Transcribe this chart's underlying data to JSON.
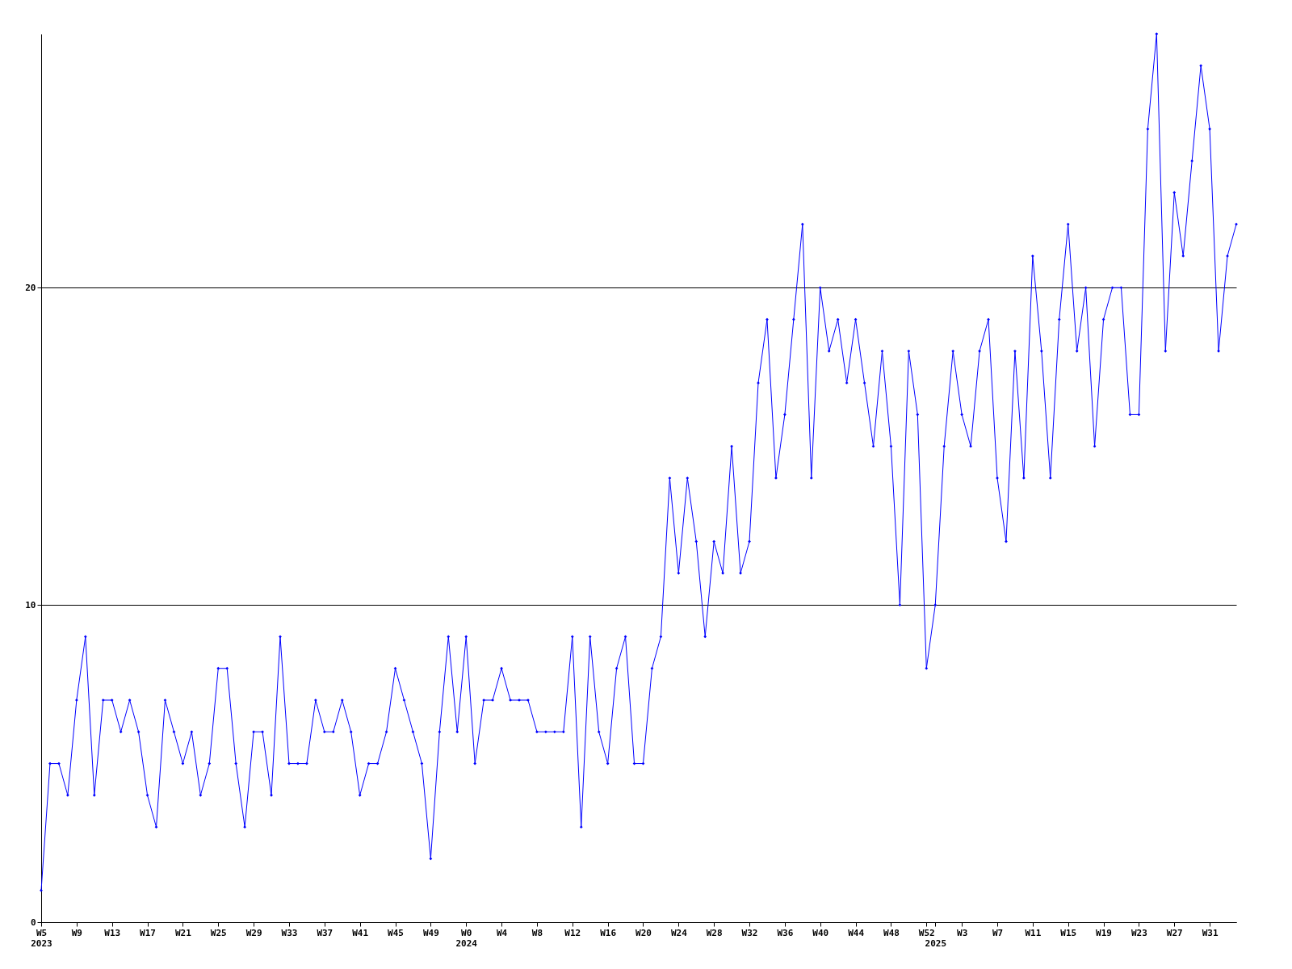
{
  "chart_data": {
    "type": "line",
    "categories": [
      "W5\n2023",
      null,
      null,
      null,
      "W9",
      null,
      null,
      null,
      "W13",
      null,
      null,
      null,
      "W17",
      null,
      null,
      null,
      "W21",
      null,
      null,
      null,
      "W25",
      null,
      null,
      null,
      "W29",
      null,
      null,
      null,
      "W33",
      null,
      null,
      null,
      "W37",
      null,
      null,
      null,
      "W41",
      null,
      null,
      null,
      "W45",
      null,
      null,
      null,
      "W49",
      null,
      null,
      null,
      "W0\n2024",
      null,
      null,
      null,
      "W4",
      null,
      null,
      null,
      "W8",
      null,
      null,
      null,
      "W12",
      null,
      null,
      null,
      "W16",
      null,
      null,
      null,
      "W20",
      null,
      null,
      null,
      "W24",
      null,
      null,
      null,
      "W28",
      null,
      null,
      null,
      "W32",
      null,
      null,
      null,
      "W36",
      null,
      null,
      null,
      "W40",
      null,
      null,
      null,
      "W44",
      null,
      null,
      null,
      "W48",
      null,
      null,
      null,
      "W52",
      "\n2025",
      null,
      null,
      "W3",
      null,
      null,
      null,
      "W7",
      null,
      null,
      null,
      "W11",
      null,
      null,
      null,
      "W15",
      null,
      null,
      null,
      "W19",
      null,
      null,
      null,
      "W23",
      null,
      null,
      null,
      "W27",
      null,
      null,
      null,
      "W31",
      null,
      null,
      null
    ],
    "series": [
      {
        "color": "#0000ff",
        "values": [
          1,
          5,
          5,
          4,
          7,
          9,
          4,
          7,
          7,
          6,
          7,
          6,
          4,
          3,
          7,
          6,
          5,
          6,
          4,
          5,
          8,
          8,
          5,
          3,
          6,
          6,
          4,
          9,
          5,
          5,
          5,
          7,
          6,
          6,
          7,
          6,
          4,
          5,
          5,
          6,
          8,
          7,
          6,
          5,
          2,
          6,
          9,
          6,
          9,
          5,
          7,
          7,
          8,
          7,
          7,
          7,
          6,
          6,
          6,
          6,
          9,
          3,
          9,
          6,
          5,
          8,
          9,
          5,
          5,
          8,
          9,
          14,
          11,
          14,
          12,
          9,
          12,
          11,
          15,
          11,
          12,
          17,
          19,
          14,
          16,
          19,
          22,
          14,
          20,
          18,
          19,
          17,
          19,
          17,
          15,
          18,
          15,
          10,
          18,
          16,
          8,
          10,
          15,
          18,
          16,
          15,
          18,
          19,
          14,
          12,
          18,
          14,
          21,
          18,
          14,
          19,
          22,
          18,
          20,
          15,
          19,
          20,
          20,
          16,
          16,
          25,
          28,
          18,
          23,
          21,
          24,
          27,
          25,
          18,
          21,
          22
        ]
      }
    ],
    "ylim": [
      0,
      28
    ],
    "yticks": [
      0,
      10,
      20
    ],
    "grid": "y",
    "marker": "diamond",
    "line_style": "solid"
  }
}
